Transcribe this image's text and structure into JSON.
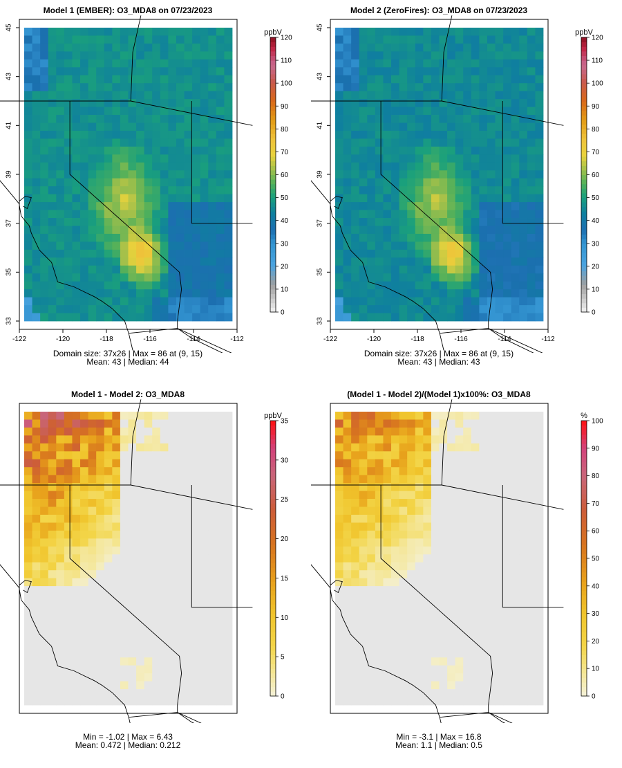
{
  "chart_data": [
    {
      "type": "heatmap",
      "title": "Model 1 (EMBER): O3_MDA8 on 07/23/2023",
      "legend_title": "ppbV",
      "scale_ticks": [
        0,
        10,
        20,
        30,
        40,
        50,
        60,
        70,
        80,
        90,
        100,
        110,
        120
      ],
      "scale_range": [
        0,
        120
      ],
      "x_ticks": [
        -122,
        -120,
        -118,
        -116,
        -114,
        -112
      ],
      "y_ticks": [
        33,
        35,
        37,
        39,
        41,
        43,
        45
      ],
      "xlim": [
        -122,
        -112
      ],
      "ylim": [
        33,
        45
      ],
      "stat_line1": "Domain size: 37x26 | Max = 86 at (9, 15)",
      "stat_line2": "Mean: 43 |  Median: 44",
      "mean": 43,
      "max": 86,
      "variant": "model1"
    },
    {
      "type": "heatmap",
      "title": "Model 2 (ZeroFires): O3_MDA8 on 07/23/2023",
      "legend_title": "ppbV",
      "scale_ticks": [
        0,
        10,
        20,
        30,
        40,
        50,
        60,
        70,
        80,
        90,
        100,
        110,
        120
      ],
      "scale_range": [
        0,
        120
      ],
      "x_ticks": [
        -122,
        -120,
        -118,
        -116,
        -114,
        -112
      ],
      "y_ticks": [
        33,
        35,
        37,
        39,
        41,
        43,
        45
      ],
      "xlim": [
        -122,
        -112
      ],
      "ylim": [
        33,
        45
      ],
      "stat_line1": "Domain size: 37x26 | Max = 86 at (9, 15)",
      "stat_line2": "Mean: 43 |  Median: 43",
      "mean": 43,
      "max": 86,
      "variant": "model2"
    },
    {
      "type": "heatmap",
      "title": "Model 1 - Model 2: O3_MDA8",
      "legend_title": "ppbV",
      "scale_ticks": [
        0,
        5,
        10,
        15,
        20,
        25,
        30,
        35
      ],
      "scale_range": [
        0,
        35
      ],
      "x_ticks": [],
      "y_ticks": [],
      "stat_line1": "Min = -1.02 | Max = 6.43",
      "stat_line2": "Mean: 0.472 |  Median: 0.212",
      "min": -1.02,
      "max": 6.43,
      "mean": 0.472,
      "variant": "diff"
    },
    {
      "type": "heatmap",
      "title": "(Model 1 - Model 2)/(Model 1)x100%: O3_MDA8",
      "legend_title": "%",
      "scale_ticks": [
        0,
        10,
        20,
        30,
        40,
        50,
        60,
        70,
        80,
        90,
        100
      ],
      "scale_range": [
        0,
        100
      ],
      "x_ticks": [],
      "y_ticks": [],
      "stat_line1": "Min = -3.1 | Max = 16.8",
      "stat_line2": "Mean: 1.1 |  Median: 0.5",
      "min": -3.1,
      "max": 16.8,
      "mean": 1.1,
      "variant": "pct"
    }
  ]
}
